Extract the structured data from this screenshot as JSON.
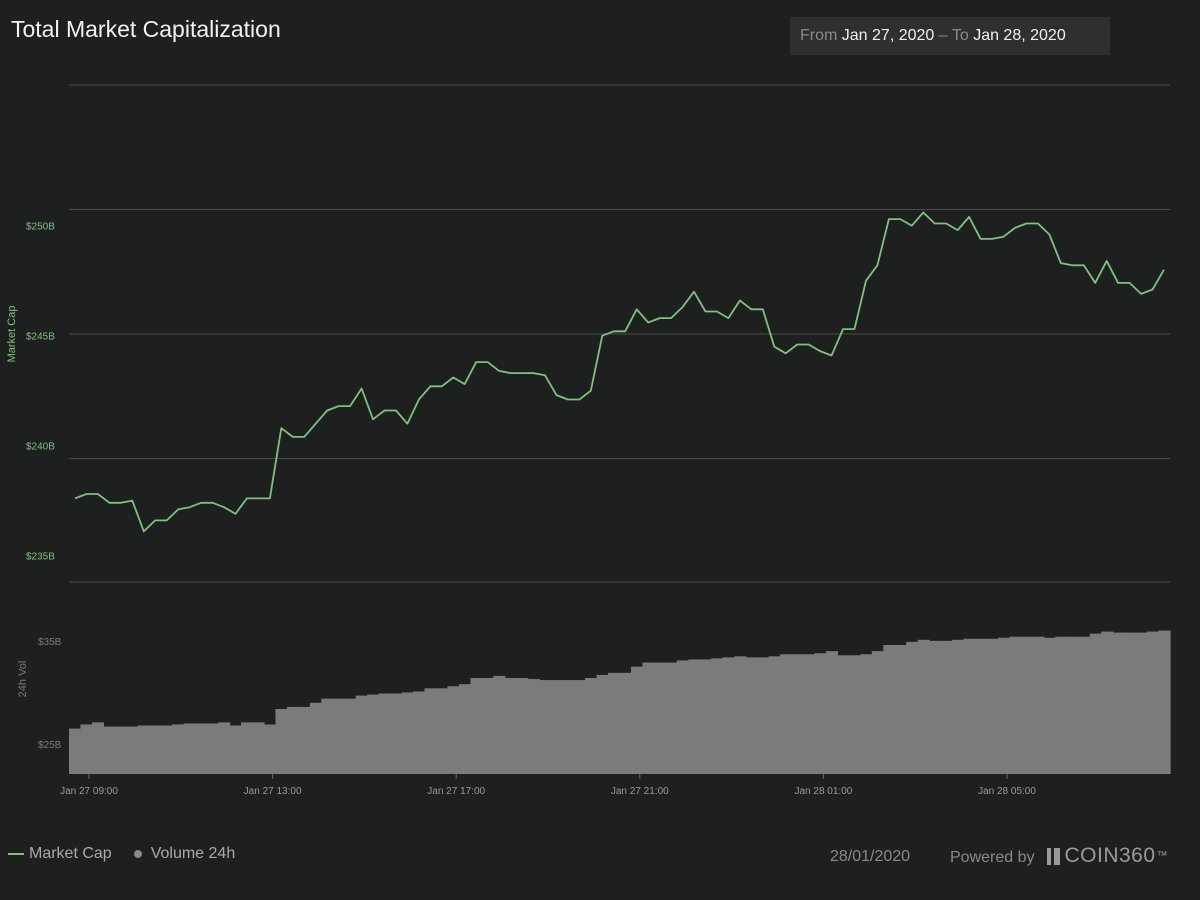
{
  "header": {
    "title": "Total Market Capitalization",
    "range": {
      "from_label": "From",
      "from_value": "Jan 27, 2020",
      "separator": "–",
      "to_label": "To",
      "to_value": "Jan 28, 2020"
    }
  },
  "legend": {
    "market_cap": "Market Cap",
    "volume": "Volume 24h"
  },
  "footer": {
    "date": "28/01/2020",
    "powered_by": "Powered by",
    "brand": "COIN360",
    "trademark": "™"
  },
  "colors": {
    "line": "#7ec27e",
    "bars": "#7b7b7b",
    "grid": "#4a4c4c"
  },
  "chart_data": [
    {
      "type": "line",
      "ylabel": "Market Cap",
      "ylim": [
        233.8,
        256.4
      ],
      "yticks": [
        235,
        240,
        245,
        250
      ],
      "ytick_labels": [
        "$235B",
        "$240B",
        "$245B",
        "$250B"
      ],
      "grid": true,
      "series": [
        {
          "name": "Market Cap",
          "values": [
            237.6,
            237.8,
            237.8,
            237.4,
            237.4,
            237.5,
            236.1,
            236.6,
            236.6,
            237.1,
            237.2,
            237.4,
            237.4,
            237.2,
            236.9,
            237.6,
            237.6,
            237.6,
            240.8,
            240.4,
            240.4,
            241.0,
            241.6,
            241.8,
            241.8,
            242.6,
            241.2,
            241.6,
            241.6,
            241.0,
            242.1,
            242.7,
            242.7,
            243.1,
            242.8,
            243.8,
            243.8,
            243.4,
            243.3,
            243.3,
            243.3,
            243.2,
            242.3,
            242.1,
            242.1,
            242.5,
            245.0,
            245.2,
            245.2,
            246.2,
            245.6,
            245.8,
            245.8,
            246.3,
            247.0,
            246.1,
            246.1,
            245.8,
            246.6,
            246.2,
            246.2,
            244.5,
            244.2,
            244.6,
            244.6,
            244.3,
            244.1,
            245.3,
            245.3,
            247.5,
            248.2,
            250.3,
            250.3,
            250.0,
            250.6,
            250.1,
            250.1,
            249.8,
            250.4,
            249.4,
            249.4,
            249.5,
            249.9,
            250.1,
            250.1,
            249.6,
            248.3,
            248.2,
            248.2,
            247.4,
            248.4,
            247.4,
            247.4,
            246.9,
            247.1,
            248.0
          ]
        }
      ]
    },
    {
      "type": "bar",
      "ylabel": "24h Vol",
      "ylim": [
        22.1,
        40.7
      ],
      "yticks": [
        25,
        35
      ],
      "ytick_labels": [
        "$25B",
        "$35B"
      ],
      "x_ticks": [
        "Jan 27 09:00",
        "Jan 27 13:00",
        "Jan 27 17:00",
        "Jan 27 21:00",
        "Jan 28 01:00",
        "Jan 28 05:00"
      ],
      "series": [
        {
          "name": "Volume 24h",
          "values": [
            26.5,
            26.9,
            27.1,
            26.7,
            26.7,
            26.7,
            26.8,
            26.8,
            26.8,
            26.9,
            27.0,
            27.0,
            27.0,
            27.1,
            26.8,
            27.1,
            27.1,
            26.9,
            28.4,
            28.6,
            28.6,
            29.0,
            29.4,
            29.4,
            29.4,
            29.7,
            29.8,
            29.9,
            29.9,
            30.0,
            30.1,
            30.4,
            30.4,
            30.6,
            30.8,
            31.4,
            31.4,
            31.6,
            31.4,
            31.4,
            31.3,
            31.2,
            31.2,
            31.2,
            31.2,
            31.4,
            31.7,
            31.9,
            31.9,
            32.5,
            32.9,
            32.9,
            32.9,
            33.1,
            33.2,
            33.2,
            33.3,
            33.4,
            33.5,
            33.4,
            33.4,
            33.5,
            33.7,
            33.7,
            33.7,
            33.8,
            34.0,
            33.6,
            33.6,
            33.7,
            34.0,
            34.6,
            34.6,
            34.9,
            35.1,
            35.0,
            35.0,
            35.1,
            35.2,
            35.2,
            35.2,
            35.3,
            35.4,
            35.4,
            35.4,
            35.3,
            35.4,
            35.4,
            35.4,
            35.7,
            35.9,
            35.8,
            35.8,
            35.8,
            35.9,
            36.0
          ]
        }
      ]
    }
  ]
}
